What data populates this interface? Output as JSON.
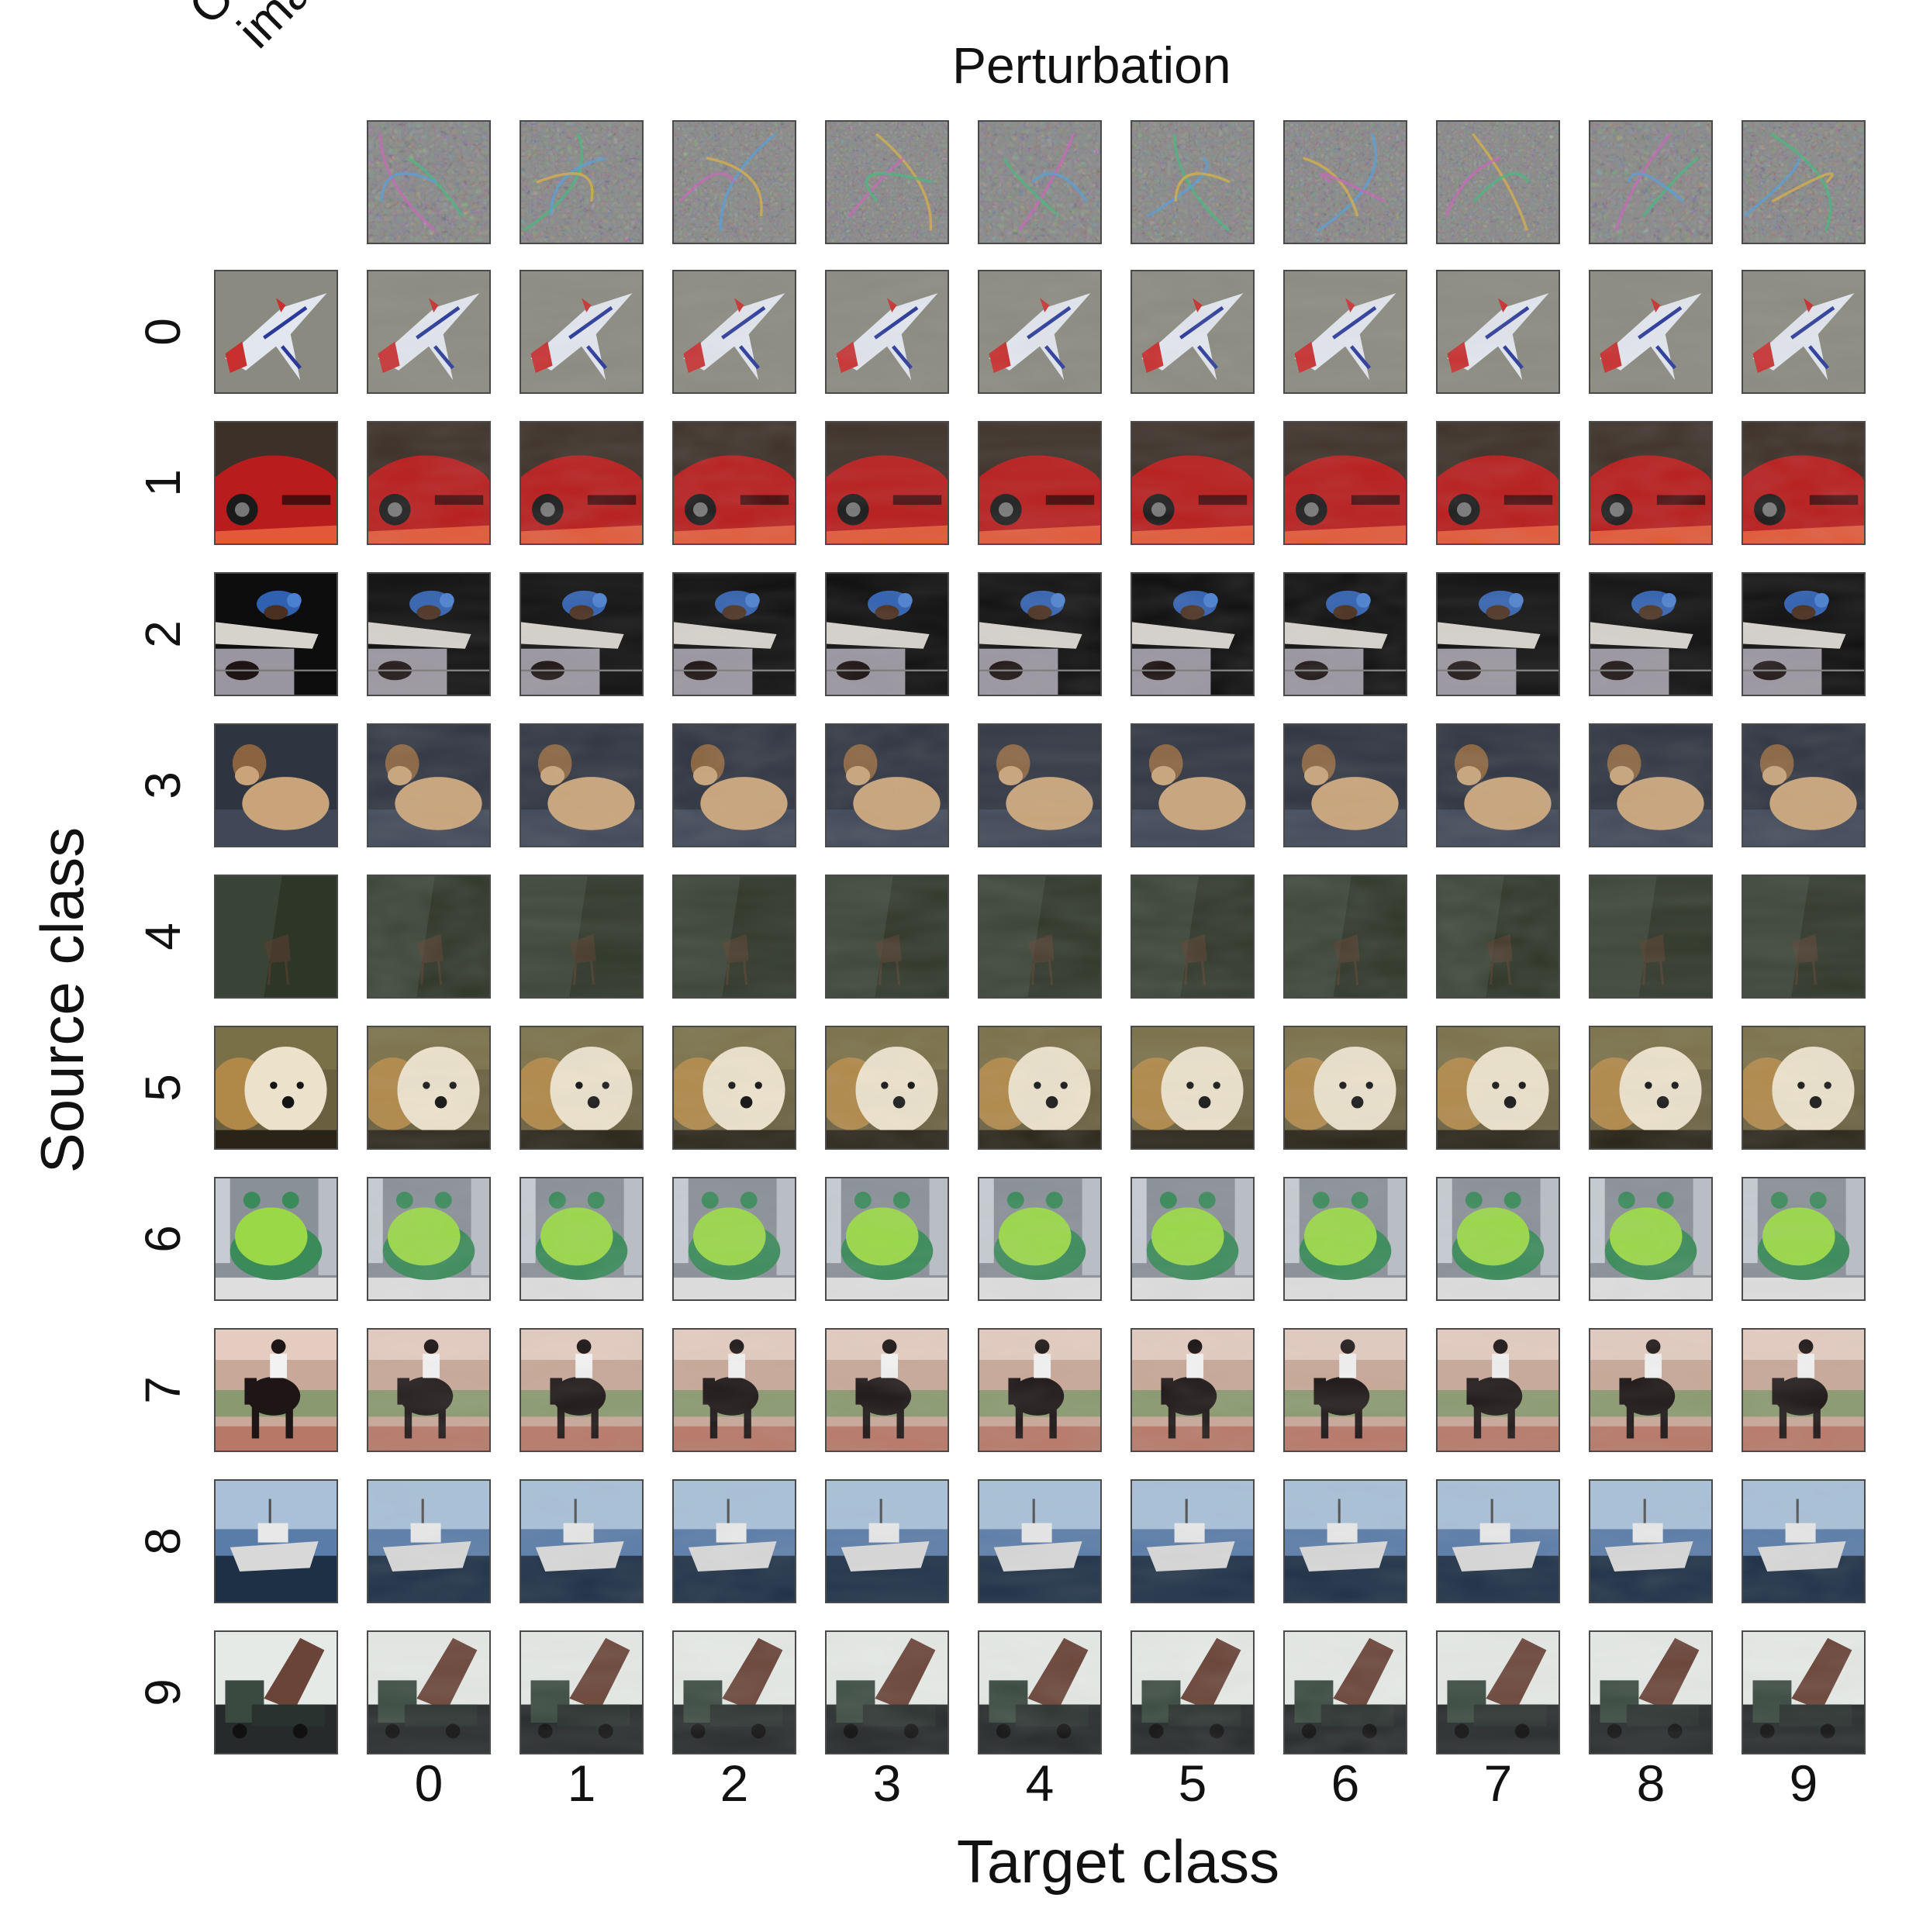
{
  "figure": {
    "title": "Perturbation",
    "corner_label": [
      "Original",
      "image"
    ],
    "ylabel": "Source class",
    "xlabel": "Target class",
    "target_classes": [
      "0",
      "1",
      "2",
      "3",
      "4",
      "5",
      "6",
      "7",
      "8",
      "9"
    ],
    "source_classes": [
      "0",
      "1",
      "2",
      "3",
      "4",
      "5",
      "6",
      "7",
      "8",
      "9"
    ]
  },
  "images": {
    "row_subjects": [
      "airplane",
      "red-car",
      "bird",
      "cat",
      "deer",
      "dog",
      "frog",
      "horse-rider",
      "ship",
      "truck"
    ],
    "row_colors": [
      {
        "bg": "#8a8a80",
        "main": "#e2e6ee",
        "accent": "#c83030",
        "detail": "#2a3a9a"
      },
      {
        "bg": "#3c3028",
        "main": "#b81c1c",
        "accent": "#e25838",
        "detail": "#1a1a1a"
      },
      {
        "bg": "#0d0d0d",
        "main": "#d6d2cc",
        "accent": "#3060b0",
        "detail": "#4a3020"
      },
      {
        "bg": "#2e3440",
        "main": "#c9a47a",
        "accent": "#8a6440",
        "detail": "#404858"
      },
      {
        "bg": "#3a4436",
        "main": "#4a4e3a",
        "accent": "#5a4030",
        "detail": "#2e3628"
      },
      {
        "bg": "#6a6040",
        "main": "#ece2cc",
        "accent": "#b08848",
        "detail": "#141414"
      },
      {
        "bg": "#8a9098",
        "main": "#9ad848",
        "accent": "#3a8a5a",
        "detail": "#dedede"
      },
      {
        "bg": "#c8a898",
        "main": "#1e1616",
        "accent": "#f2f2f2",
        "detail": "#8a9a70"
      },
      {
        "bg": "#5a7ca8",
        "main": "#d8d8d8",
        "accent": "#1e3046",
        "detail": "#a8c0d8"
      },
      {
        "bg": "#e6eae6",
        "main": "#3a4a40",
        "accent": "#6a4438",
        "detail": "#262a2a"
      }
    ],
    "perturbation_palette": [
      "#c86ab8",
      "#4ab880",
      "#5aa0d8",
      "#d8b048",
      "#8a8a8a"
    ]
  }
}
